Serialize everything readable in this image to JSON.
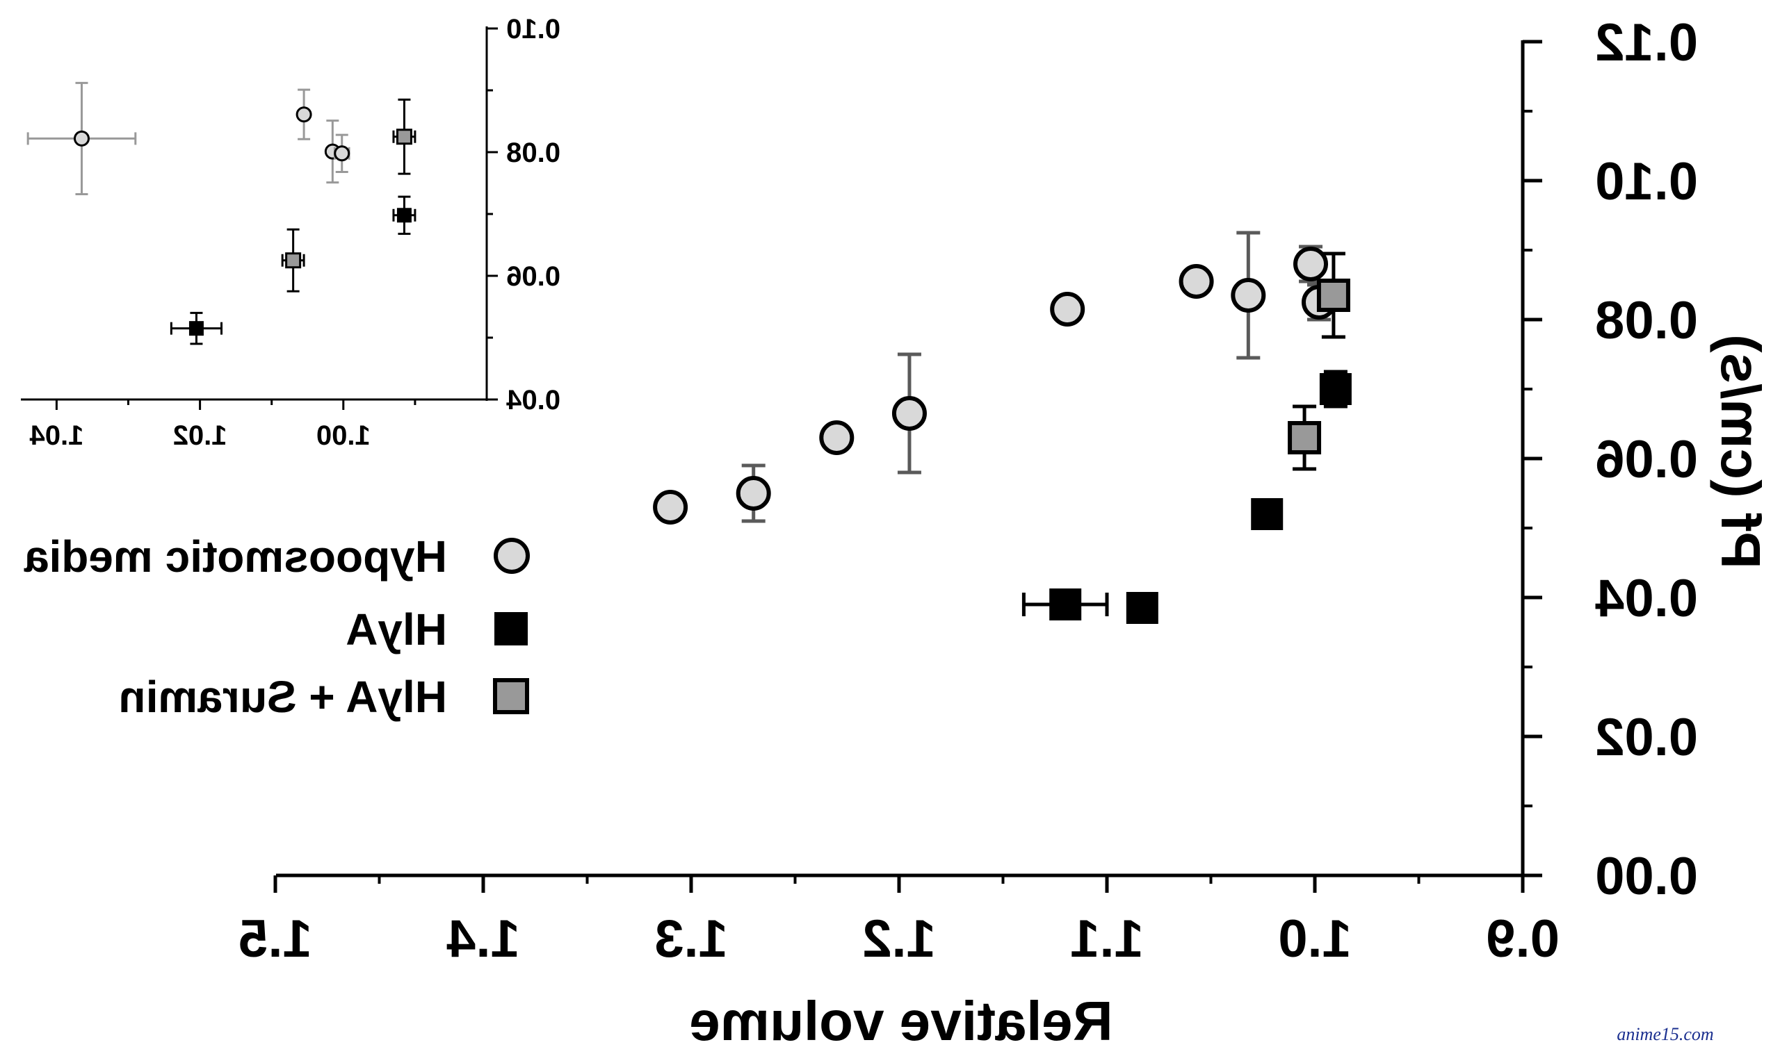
{
  "chart_data": [
    {
      "name": "main",
      "type": "scatter",
      "mirrored": true,
      "xlabel": "Relative volume",
      "ylabel": "Pf (cm/s)",
      "xlim": [
        0.9,
        1.5
      ],
      "ylim": [
        0.0,
        0.12
      ],
      "x_ticks": [
        "0.9",
        "1.0",
        "1.1",
        "1.2",
        "1.3",
        "1.4",
        "1.5"
      ],
      "y_ticks": [
        "0.00",
        "0.02",
        "0.04",
        "0.06",
        "0.08",
        "0.10",
        "0.12"
      ],
      "series": [
        {
          "name": "Hypoosmotic media",
          "marker": "circle",
          "color": "#d9d9d9",
          "points": [
            {
              "x": 1.31,
              "y": 0.053,
              "yerr": 0,
              "xerr": 0
            },
            {
              "x": 1.27,
              "y": 0.055,
              "yerr": 0.004,
              "xerr": 0
            },
            {
              "x": 1.23,
              "y": 0.063,
              "yerr": 0,
              "xerr": 0.004
            },
            {
              "x": 1.195,
              "y": 0.0665,
              "yerr": 0.0085,
              "xerr": 0
            },
            {
              "x": 1.119,
              "y": 0.0815,
              "yerr": 0,
              "xerr": 0.005
            },
            {
              "x": 1.057,
              "y": 0.0855,
              "yerr": 0,
              "xerr": 0
            },
            {
              "x": 1.032,
              "y": 0.0835,
              "yerr": 0.009,
              "xerr": 0
            },
            {
              "x": 1.002,
              "y": 0.088,
              "yerr": 0.0025,
              "xerr": 0
            },
            {
              "x": 0.998,
              "y": 0.0825,
              "yerr": 0.0025,
              "xerr": 0
            }
          ]
        },
        {
          "name": "HlyA",
          "marker": "square",
          "color": "#000000",
          "points": [
            {
              "x": 1.12,
              "y": 0.039,
              "yerr": 0,
              "xerr": 0.02
            },
            {
              "x": 1.083,
              "y": 0.0385,
              "yerr": 0,
              "xerr": 0
            },
            {
              "x": 1.023,
              "y": 0.052,
              "yerr": 0,
              "xerr": 0
            },
            {
              "x": 0.99,
              "y": 0.07,
              "yerr": 0.0025,
              "xerr": 0
            }
          ]
        },
        {
          "name": "HlyA + Suramin",
          "marker": "square",
          "color": "#999999",
          "points": [
            {
              "x": 1.005,
              "y": 0.063,
              "yerr": 0.0045,
              "xerr": 0
            },
            {
              "x": 0.991,
              "y": 0.0835,
              "yerr": 0.006,
              "xerr": 0
            }
          ]
        }
      ],
      "legend_position": "left-middle"
    },
    {
      "name": "inset",
      "type": "scatter",
      "mirrored": true,
      "xlim": [
        0.98,
        1.045
      ],
      "ylim": [
        0.04,
        0.1
      ],
      "x_ticks": [
        "1.00",
        "1.02",
        "1.04"
      ],
      "y_ticks": [
        "0.04",
        "0.06",
        "0.08",
        "0.10"
      ],
      "series": [
        {
          "name": "Hypoosmotic media",
          "marker": "circle",
          "color": "#d9d9d9",
          "points": [
            {
              "x": 1.0365,
              "y": 0.0822,
              "xerr": 0.0075,
              "yerr": 0.009
            },
            {
              "x": 1.0055,
              "y": 0.0861,
              "xerr": 0,
              "yerr": 0.004
            },
            {
              "x": 1.0015,
              "y": 0.0801,
              "xerr": 0,
              "yerr": 0.005
            },
            {
              "x": 1.0002,
              "y": 0.0798,
              "xerr": 0.001,
              "yerr": 0.003
            }
          ]
        },
        {
          "name": "HlyA",
          "marker": "square",
          "color": "#000000",
          "points": [
            {
              "x": 1.0205,
              "y": 0.0515,
              "xerr": 0.0035,
              "yerr": 0.0025
            },
            {
              "x": 0.9915,
              "y": 0.0698,
              "xerr": 0.0015,
              "yerr": 0.003
            }
          ]
        },
        {
          "name": "HlyA + Suramin",
          "marker": "square",
          "color": "#999999",
          "points": [
            {
              "x": 1.007,
              "y": 0.0625,
              "xerr": 0.0015,
              "yerr": 0.005
            },
            {
              "x": 0.9915,
              "y": 0.0825,
              "xerr": 0.0015,
              "yerr": 0.006
            }
          ]
        }
      ]
    }
  ],
  "legend": {
    "items": [
      {
        "label": "Hypoosmotic media",
        "marker": "circle",
        "color": "#d9d9d9"
      },
      {
        "label": "HlyA",
        "marker": "square",
        "color": "#000000"
      },
      {
        "label": "HlyA + Suramin",
        "marker": "square",
        "color": "#999999"
      }
    ]
  },
  "watermark": "anime15.com"
}
